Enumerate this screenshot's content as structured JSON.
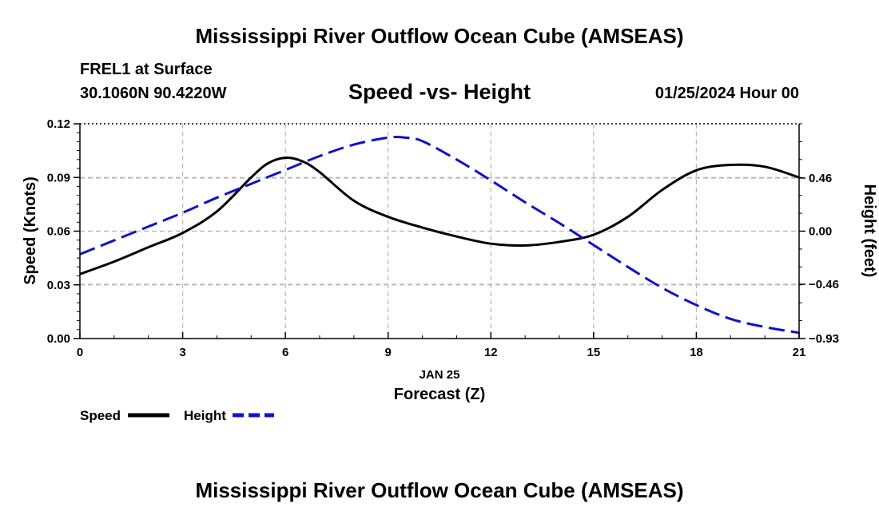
{
  "header": {
    "title": "Mississippi River Outflow Ocean Cube (AMSEAS)",
    "station": "FREL1 at Surface",
    "coords": "30.1060N  90.4220W",
    "subtitle": "Speed -vs- Height",
    "datetime": "01/25/2024 Hour 00"
  },
  "footer": {
    "title": "Mississippi River Outflow Ocean Cube (AMSEAS)"
  },
  "chart_data": {
    "type": "line",
    "title": "Speed -vs- Height",
    "xlabel": "Forecast (Z)",
    "xsublabel": "JAN 25",
    "ylabel": "Speed (Knots)",
    "y2label": "Height (feet)",
    "xlim": [
      0,
      21
    ],
    "ylim": [
      0,
      0.12
    ],
    "y2lim": [
      -0.93,
      0.93
    ],
    "xticks": [
      0,
      3,
      6,
      9,
      12,
      15,
      18,
      21
    ],
    "xtick_labels": [
      "0",
      "3",
      "6",
      "9",
      "12",
      "15",
      "18",
      "21"
    ],
    "yticks": [
      0,
      0.03,
      0.06,
      0.09,
      0.12
    ],
    "ytick_labels": [
      "0.00",
      "0.03",
      "0.06",
      "0.09",
      "0.12"
    ],
    "y2ticks": [
      -0.93,
      -0.46,
      0,
      0.46
    ],
    "y2tick_labels": [
      "−0.93",
      "−0.46",
      "0.00",
      "0.46"
    ],
    "grid": true,
    "legend_position": "bottom-left",
    "series": [
      {
        "name": "Speed",
        "axis": "left",
        "color": "#000000",
        "dash": "solid",
        "x": [
          0,
          1,
          2,
          3,
          4,
          5,
          5.5,
          6,
          6.5,
          7,
          8,
          9,
          10,
          11,
          12,
          13,
          14,
          15,
          16,
          17,
          18,
          19,
          20,
          21
        ],
        "values": [
          0.036,
          0.043,
          0.051,
          0.059,
          0.071,
          0.09,
          0.098,
          0.101,
          0.099,
          0.093,
          0.077,
          0.068,
          0.062,
          0.057,
          0.053,
          0.052,
          0.054,
          0.058,
          0.068,
          0.083,
          0.094,
          0.097,
          0.096,
          0.09
        ]
      },
      {
        "name": "Height",
        "axis": "right",
        "color": "#1010cc",
        "dash": "dashed",
        "x": [
          0,
          1,
          2,
          3,
          4,
          5,
          6,
          7,
          8,
          9,
          9.5,
          10,
          11,
          12,
          13,
          14,
          15,
          16,
          17,
          18,
          19,
          20,
          21
        ],
        "values": [
          -0.2,
          -0.08,
          0.04,
          0.16,
          0.29,
          0.41,
          0.53,
          0.65,
          0.75,
          0.81,
          0.81,
          0.78,
          0.62,
          0.44,
          0.25,
          0.07,
          -0.12,
          -0.31,
          -0.49,
          -0.64,
          -0.76,
          -0.83,
          -0.88
        ]
      }
    ]
  }
}
